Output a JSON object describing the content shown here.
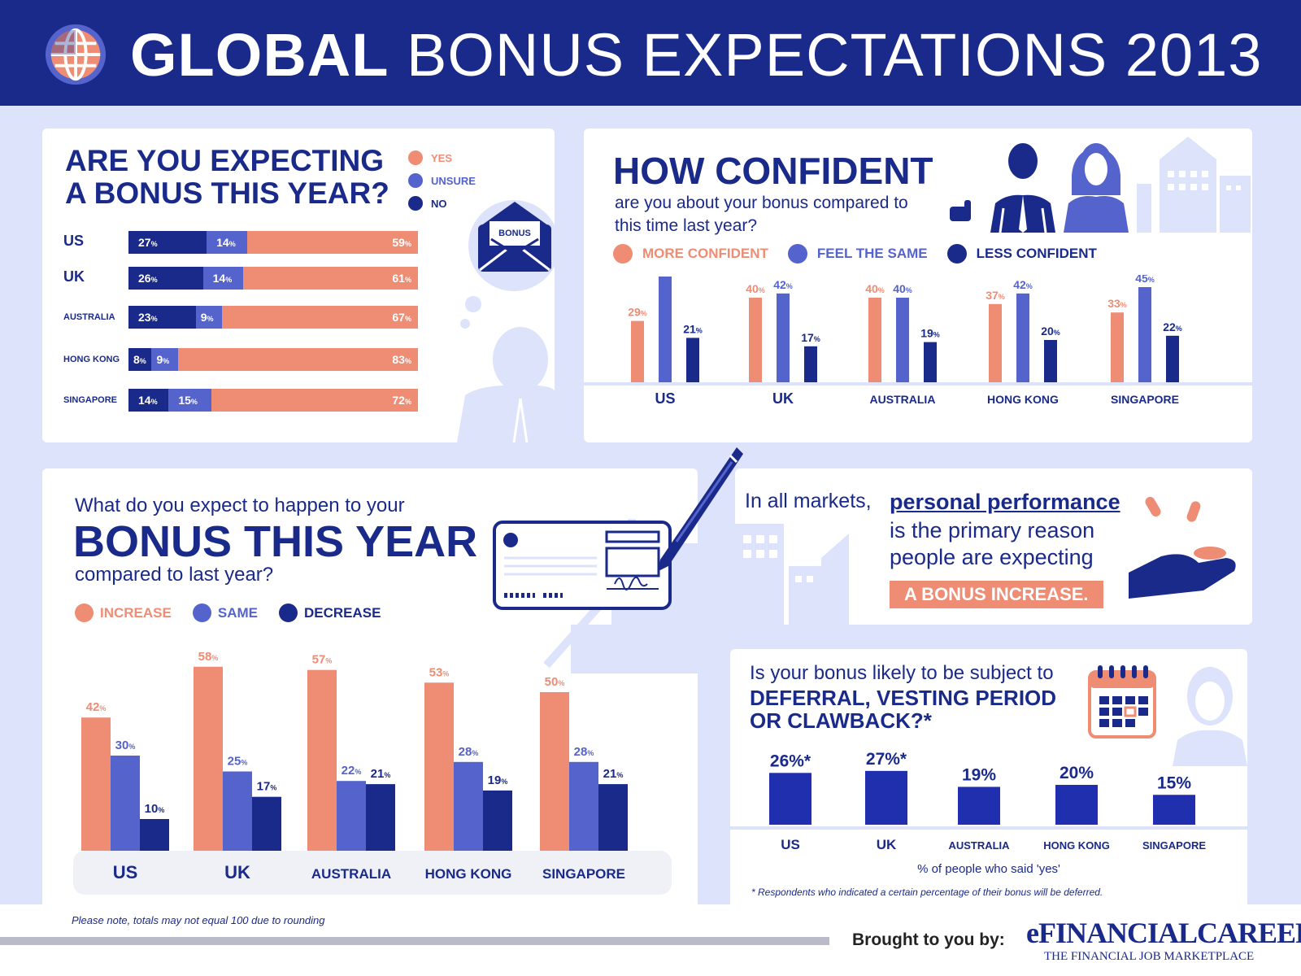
{
  "header": {
    "title_bold": "GLOBAL",
    "title_rest": "BONUS EXPECTATIONS 2013"
  },
  "colors": {
    "navy": "#1a2a8a",
    "periwinkle": "#5563cc",
    "coral": "#ef8c74",
    "background": "#dde3fa"
  },
  "panel_expecting": {
    "title_line1": "ARE YOU EXPECTING",
    "title_line2": "A BONUS THIS YEAR?",
    "legend": [
      "YES",
      "UNSURE",
      "NO"
    ],
    "envelope_label": "BONUS"
  },
  "panel_confident": {
    "title": "HOW CONFIDENT",
    "subtitle": "are you about your bonus compared to this time last year?",
    "legend": [
      "MORE CONFIDENT",
      "FEEL THE SAME",
      "LESS CONFIDENT"
    ]
  },
  "panel_bonus_change": {
    "question_line1": "What do you expect to happen to your",
    "title": "BONUS THIS YEAR",
    "question_line2": "compared to last year?",
    "legend": [
      "INCREASE",
      "SAME",
      "DECREASE"
    ]
  },
  "panel_reason": {
    "lead": "In all markets,",
    "highlight_link": "personal performance",
    "body": "is the primary reason people are expecting",
    "callout": "A BONUS INCREASE."
  },
  "panel_deferral": {
    "question": "Is your bonus likely to be subject to",
    "title_line1": "DEFERRAL, VESTING PERIOD",
    "title_line2": "OR CLAWBACK?*",
    "caption": "% of people who said 'yes'",
    "footnote": "* Respondents who indicated a certain percentage of their bonus will be deferred."
  },
  "footer": {
    "note": "Please note, totals may not equal 100 due to rounding",
    "brought_by": "Brought to you by:",
    "brand": "eFINANCIALCAREERS",
    "brand_tagline": "THE FINANCIAL JOB MARKETPLACE"
  },
  "chart_data": [
    {
      "id": "expecting",
      "type": "bar",
      "orientation": "horizontal-stacked",
      "categories": [
        "US",
        "UK",
        "AUSTRALIA",
        "HONG KONG",
        "SINGAPORE"
      ],
      "series": [
        {
          "name": "NO",
          "values": [
            27,
            26,
            23,
            8,
            14
          ]
        },
        {
          "name": "UNSURE",
          "values": [
            14,
            14,
            9,
            9,
            15
          ]
        },
        {
          "name": "YES",
          "values": [
            59,
            61,
            67,
            83,
            72
          ]
        }
      ]
    },
    {
      "id": "confidence",
      "type": "bar",
      "categories": [
        "US",
        "UK",
        "AUSTRALIA",
        "HONG KONG",
        "SINGAPORE"
      ],
      "series": [
        {
          "name": "MORE CONFIDENT",
          "values": [
            29,
            40,
            40,
            37,
            33
          ]
        },
        {
          "name": "FEEL THE SAME",
          "values": [
            50,
            42,
            40,
            42,
            45
          ]
        },
        {
          "name": "LESS CONFIDENT",
          "values": [
            21,
            17,
            19,
            20,
            22
          ]
        }
      ]
    },
    {
      "id": "bonus_change",
      "type": "bar",
      "categories": [
        "US",
        "UK",
        "AUSTRALIA",
        "HONG KONG",
        "SINGAPORE"
      ],
      "series": [
        {
          "name": "INCREASE",
          "values": [
            42,
            58,
            57,
            53,
            50
          ]
        },
        {
          "name": "SAME",
          "values": [
            30,
            25,
            22,
            28,
            28
          ]
        },
        {
          "name": "DECREASE",
          "values": [
            10,
            17,
            21,
            19,
            21
          ]
        }
      ]
    },
    {
      "id": "deferral",
      "type": "bar",
      "categories": [
        "US",
        "UK",
        "AUSTRALIA",
        "HONG KONG",
        "SINGAPORE"
      ],
      "values": [
        26,
        27,
        19,
        20,
        15
      ],
      "value_labels": [
        "26%*",
        "27%*",
        "19%",
        "20%",
        "15%"
      ]
    }
  ]
}
